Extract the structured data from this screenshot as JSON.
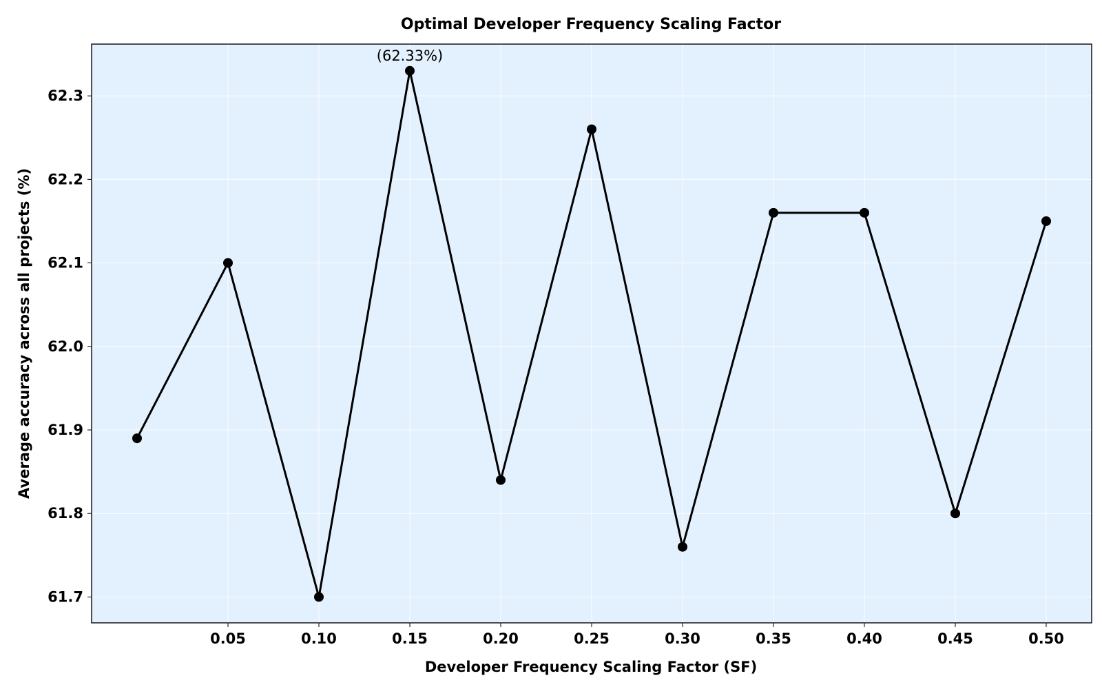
{
  "chart_data": {
    "type": "line",
    "title": "Optimal Developer Frequency Scaling Factor",
    "xlabel": "Developer Frequency Scaling Factor (SF)",
    "ylabel": "Average accuracy across all projects (%)",
    "x": [
      0.0,
      0.05,
      0.1,
      0.15,
      0.2,
      0.25,
      0.3,
      0.35,
      0.4,
      0.45,
      0.5
    ],
    "series": [
      {
        "values": [
          61.89,
          62.1,
          61.7,
          62.33,
          61.84,
          62.26,
          61.76,
          62.16,
          62.16,
          61.8,
          62.15
        ]
      }
    ],
    "xticks": [
      0.05,
      0.1,
      0.15,
      0.2,
      0.25,
      0.3,
      0.35,
      0.4,
      0.45,
      0.5
    ],
    "xtick_labels": [
      "0.05",
      "0.10",
      "0.15",
      "0.20",
      "0.25",
      "0.30",
      "0.35",
      "0.40",
      "0.45",
      "0.50"
    ],
    "yticks": [
      61.7,
      61.8,
      61.9,
      62.0,
      62.1,
      62.2,
      62.3
    ],
    "ytick_labels": [
      "61.7",
      "61.8",
      "61.9",
      "62.0",
      "62.1",
      "62.2",
      "62.3"
    ],
    "xlim": [
      -0.025,
      0.525
    ],
    "ylim": [
      61.669,
      62.362
    ],
    "grid": true,
    "annotations": [
      {
        "text": "(62.33%)",
        "x": 0.15,
        "y": 62.33
      }
    ],
    "colors": {
      "plot_background": "#e3f0fd",
      "line": "#000000",
      "marker": "#000000",
      "grid": "#ffffff"
    }
  }
}
